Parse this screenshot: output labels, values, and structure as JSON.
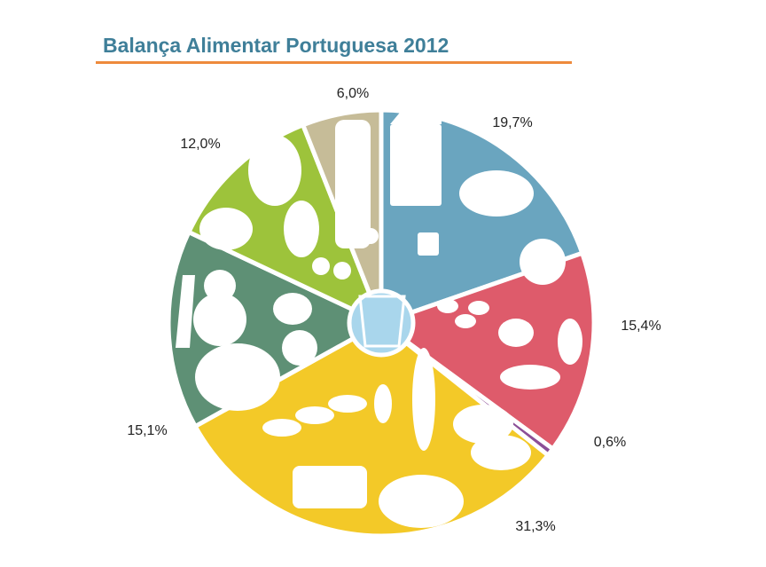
{
  "chart_data": {
    "type": "pie",
    "title": "Balança Alimentar Portuguesa 2012",
    "slices": [
      {
        "label": "19,7%",
        "value": 19.7,
        "color": "#6aa5bf"
      },
      {
        "label": "15,4%",
        "value": 15.4,
        "color": "#de5b6b"
      },
      {
        "label": "0,6%",
        "value": 0.6,
        "color": "#8c4f97"
      },
      {
        "label": "31,3%",
        "value": 31.3,
        "color": "#f3c928"
      },
      {
        "label": "15,1%",
        "value": 15.1,
        "color": "#5e9075"
      },
      {
        "label": "12,0%",
        "value": 12.0,
        "color": "#9dc33b"
      },
      {
        "label": "6,0%",
        "value": 6.0,
        "color": "#c6bc98"
      }
    ],
    "center_color": "#a9d6ec",
    "legend": "none"
  }
}
